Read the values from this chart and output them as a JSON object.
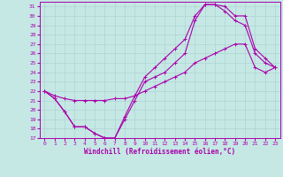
{
  "xlabel": "Windchill (Refroidissement éolien,°C)",
  "xlim": [
    -0.5,
    23.5
  ],
  "ylim": [
    17,
    31.5
  ],
  "xticks": [
    0,
    1,
    2,
    3,
    4,
    5,
    6,
    7,
    8,
    9,
    10,
    11,
    12,
    13,
    14,
    15,
    16,
    17,
    18,
    19,
    20,
    21,
    22,
    23
  ],
  "yticks": [
    17,
    18,
    19,
    20,
    21,
    22,
    23,
    24,
    25,
    26,
    27,
    28,
    29,
    30,
    31
  ],
  "background_color": "#c5e8e5",
  "grid_color": "#a8d0cc",
  "line_color": "#aa00aa",
  "curve1_x": [
    0,
    1,
    2,
    3,
    4,
    5,
    6,
    7,
    8,
    9,
    10,
    11,
    12,
    13,
    14,
    15,
    16,
    17,
    18,
    19,
    20,
    21,
    22,
    23
  ],
  "curve1_y": [
    22.0,
    21.2,
    19.8,
    18.2,
    18.2,
    17.5,
    17.0,
    17.0,
    19.3,
    21.5,
    23.5,
    24.5,
    25.5,
    26.5,
    27.5,
    30.0,
    31.2,
    31.2,
    31.0,
    30.0,
    30.0,
    26.5,
    25.5,
    24.5
  ],
  "curve2_x": [
    0,
    1,
    2,
    3,
    4,
    5,
    6,
    7,
    8,
    9,
    10,
    11,
    12,
    13,
    14,
    15,
    16,
    17,
    18,
    19,
    20,
    21,
    22,
    23
  ],
  "curve2_y": [
    22.0,
    21.2,
    19.8,
    18.2,
    18.2,
    17.5,
    17.0,
    17.0,
    19.0,
    21.0,
    23.0,
    23.5,
    24.0,
    25.0,
    26.0,
    29.5,
    31.2,
    31.2,
    30.5,
    29.5,
    29.0,
    26.0,
    25.0,
    24.5
  ],
  "curve3_x": [
    0,
    1,
    2,
    3,
    4,
    5,
    6,
    7,
    8,
    9,
    10,
    11,
    12,
    13,
    14,
    15,
    16,
    17,
    18,
    19,
    20,
    21,
    22,
    23
  ],
  "curve3_y": [
    22.0,
    21.5,
    21.2,
    21.0,
    21.0,
    21.0,
    21.0,
    21.2,
    21.2,
    21.5,
    22.0,
    22.5,
    23.0,
    23.5,
    24.0,
    25.0,
    25.5,
    26.0,
    26.5,
    27.0,
    27.0,
    24.5,
    24.0,
    24.5
  ],
  "marker": "+",
  "markersize": 3,
  "linewidth": 0.8
}
